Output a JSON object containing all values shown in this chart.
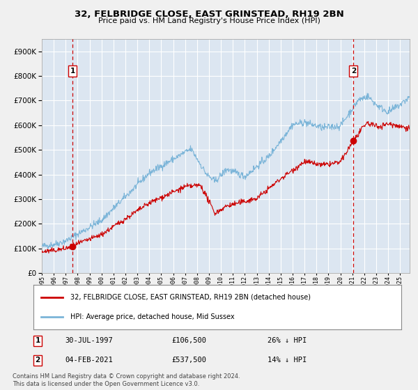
{
  "title": "32, FELBRIDGE CLOSE, EAST GRINSTEAD, RH19 2BN",
  "subtitle": "Price paid vs. HM Land Registry's House Price Index (HPI)",
  "hpi_label": "HPI: Average price, detached house, Mid Sussex",
  "property_label": "32, FELBRIDGE CLOSE, EAST GRINSTEAD, RH19 2BN (detached house)",
  "sale1_date": "30-JUL-1997",
  "sale1_price": 106500,
  "sale1_note": "26% ↓ HPI",
  "sale2_date": "04-FEB-2021",
  "sale2_price": 537500,
  "sale2_note": "14% ↓ HPI",
  "sale1_x": 1997.58,
  "sale2_x": 2021.09,
  "background_color": "#f0f0f0",
  "plot_bg_color": "#dce6f1",
  "hpi_color": "#7ab4d8",
  "property_color": "#cc0000",
  "vline_color": "#cc0000",
  "grid_color": "#ffffff",
  "footnote": "Contains HM Land Registry data © Crown copyright and database right 2024.\nThis data is licensed under the Open Government Licence v3.0.",
  "ylim": [
    0,
    950000
  ],
  "xlim_start": 1995.0,
  "xlim_end": 2025.8
}
